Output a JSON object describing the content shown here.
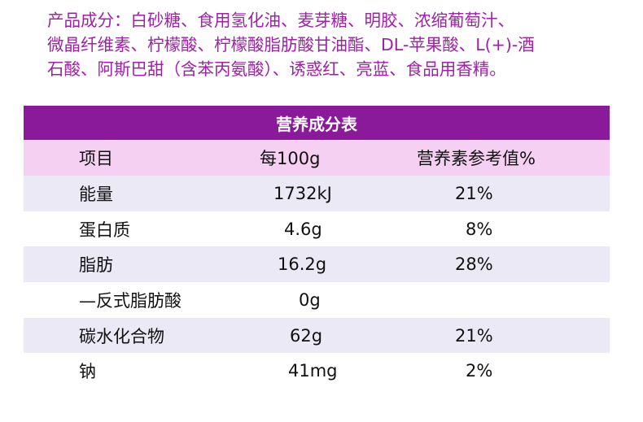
{
  "ingredients": {
    "lines": [
      "产品成分：白砂糖、食用氢化油、麦芽糖、明胶、浓缩葡萄汁、",
      "微晶纤维素、柠檬酸、柠檬酸脂肪酸甘油酯、DL-苹果酸、L(+)-酒",
      "石酸、阿斯巴甜（含苯丙氨酸）、诱惑红、亮蓝、食品用香精。"
    ]
  },
  "colors": {
    "ingredients_text": "#a020a8",
    "title_bar": "#8b1a9a",
    "header_row": "#f5d0f2",
    "shaded_row": "#ebe9f5"
  },
  "table": {
    "title": "营养成分表",
    "headers": [
      "项目",
      "每100g",
      "营养素参考值%"
    ],
    "rows": [
      {
        "item": "能量",
        "per100g": "1732kJ",
        "nrv": "21%"
      },
      {
        "item": "蛋白质",
        "per100g": "4.6g",
        "nrv": "8%"
      },
      {
        "item": "脂肪",
        "per100g": "16.2g",
        "nrv": "28%"
      },
      {
        "item": "—反式脂肪酸",
        "per100g": "0g",
        "nrv": ""
      },
      {
        "item": "碳水化合物",
        "per100g": "62g",
        "nrv": "21%"
      },
      {
        "item": "钠",
        "per100g": "41mg",
        "nrv": "2%"
      }
    ]
  }
}
